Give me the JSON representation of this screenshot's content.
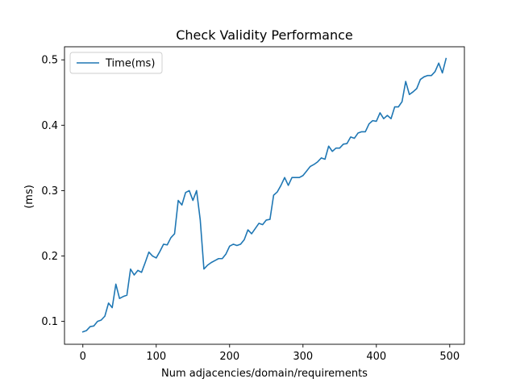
{
  "chart_data": {
    "type": "line",
    "title": "Check Validity Performance",
    "xlabel": "Num adjacencies/domain/requirements",
    "ylabel": "(ms)",
    "xlim": [
      -25,
      520
    ],
    "ylim": [
      0.065,
      0.52
    ],
    "xticks": [
      0,
      100,
      200,
      300,
      400,
      500
    ],
    "yticks": [
      0.1,
      0.2,
      0.3,
      0.4,
      0.5
    ],
    "xtick_labels": [
      "0",
      "100",
      "200",
      "300",
      "400",
      "500"
    ],
    "ytick_labels": [
      "0.1",
      "0.2",
      "0.3",
      "0.4",
      "0.5"
    ],
    "legend_position": "top-left",
    "grid": false,
    "series": [
      {
        "name": "Time(ms)",
        "color": "#1f77b4",
        "x": [
          0,
          5,
          10,
          15,
          20,
          25,
          30,
          35,
          40,
          45,
          50,
          55,
          60,
          65,
          70,
          75,
          80,
          85,
          90,
          95,
          100,
          105,
          110,
          115,
          120,
          125,
          130,
          135,
          140,
          145,
          150,
          155,
          160,
          165,
          170,
          175,
          180,
          185,
          190,
          195,
          200,
          205,
          210,
          215,
          220,
          225,
          230,
          235,
          240,
          245,
          250,
          255,
          260,
          265,
          270,
          275,
          280,
          285,
          290,
          295,
          300,
          305,
          310,
          315,
          320,
          325,
          330,
          335,
          340,
          345,
          350,
          355,
          360,
          365,
          370,
          375,
          380,
          385,
          390,
          395,
          400,
          405,
          410,
          415,
          420,
          425,
          430,
          435,
          440,
          445,
          450,
          455,
          460,
          465,
          470,
          475,
          480,
          485,
          490,
          495
        ],
        "values": [
          0.084,
          0.086,
          0.092,
          0.093,
          0.1,
          0.102,
          0.108,
          0.128,
          0.121,
          0.157,
          0.135,
          0.138,
          0.14,
          0.18,
          0.171,
          0.178,
          0.175,
          0.19,
          0.206,
          0.2,
          0.197,
          0.207,
          0.218,
          0.217,
          0.228,
          0.234,
          0.285,
          0.278,
          0.297,
          0.3,
          0.285,
          0.3,
          0.255,
          0.18,
          0.186,
          0.19,
          0.193,
          0.196,
          0.196,
          0.203,
          0.215,
          0.218,
          0.216,
          0.218,
          0.225,
          0.24,
          0.234,
          0.242,
          0.25,
          0.248,
          0.255,
          0.256,
          0.293,
          0.298,
          0.308,
          0.32,
          0.308,
          0.32,
          0.32,
          0.32,
          0.323,
          0.33,
          0.337,
          0.34,
          0.344,
          0.35,
          0.348,
          0.368,
          0.36,
          0.365,
          0.365,
          0.371,
          0.372,
          0.382,
          0.38,
          0.388,
          0.39,
          0.39,
          0.402,
          0.407,
          0.406,
          0.419,
          0.41,
          0.415,
          0.41,
          0.428,
          0.428,
          0.436,
          0.467,
          0.447,
          0.451,
          0.456,
          0.47,
          0.474,
          0.476,
          0.476,
          0.482,
          0.495,
          0.48,
          0.502
        ]
      }
    ]
  }
}
